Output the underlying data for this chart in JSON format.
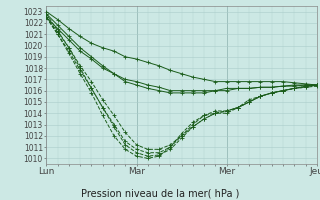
{
  "xlabel": "Pression niveau de la mer( hPa )",
  "xtick_labels": [
    "Lun",
    "Mar",
    "Mer",
    "Jeu"
  ],
  "xtick_positions": [
    0,
    48,
    96,
    144
  ],
  "ylim": [
    1009.5,
    1023.5
  ],
  "ytick_min": 1010,
  "ytick_max": 1023,
  "background_color": "#cce8e4",
  "grid_color": "#aaccca",
  "line_color": "#1a5c1a",
  "total_hours": 144,
  "series": [
    {
      "name": "s1_solid",
      "x": [
        0,
        6,
        12,
        18,
        24,
        30,
        36,
        42,
        48,
        54,
        60,
        66,
        72,
        78,
        84,
        90,
        96,
        102,
        108,
        114,
        120,
        126,
        132,
        138,
        144
      ],
      "y": [
        1023.0,
        1022.3,
        1021.5,
        1020.8,
        1020.2,
        1019.8,
        1019.5,
        1019.0,
        1018.8,
        1018.5,
        1018.2,
        1017.8,
        1017.5,
        1017.2,
        1017.0,
        1016.8,
        1016.8,
        1016.8,
        1016.8,
        1016.8,
        1016.8,
        1016.8,
        1016.7,
        1016.6,
        1016.5
      ]
    },
    {
      "name": "s2_solid",
      "x": [
        0,
        6,
        12,
        18,
        24,
        30,
        36,
        42,
        48,
        54,
        60,
        66,
        72,
        78,
        84,
        90,
        96,
        102,
        108,
        114,
        120,
        126,
        132,
        138,
        144
      ],
      "y": [
        1022.5,
        1021.5,
        1020.5,
        1019.5,
        1018.8,
        1018.0,
        1017.5,
        1017.0,
        1016.8,
        1016.5,
        1016.3,
        1016.0,
        1016.0,
        1016.0,
        1016.0,
        1016.0,
        1016.2,
        1016.2,
        1016.2,
        1016.3,
        1016.3,
        1016.4,
        1016.4,
        1016.5,
        1016.5
      ]
    },
    {
      "name": "s3_solid",
      "x": [
        0,
        6,
        12,
        18,
        24,
        30,
        36,
        42,
        48,
        54,
        60,
        66,
        72,
        78,
        84,
        90,
        96,
        102,
        108,
        114,
        120,
        126,
        132,
        138,
        144
      ],
      "y": [
        1022.8,
        1021.8,
        1020.8,
        1019.8,
        1019.0,
        1018.2,
        1017.5,
        1016.8,
        1016.5,
        1016.2,
        1016.0,
        1015.8,
        1015.8,
        1015.8,
        1015.8,
        1016.0,
        1016.0,
        1016.2,
        1016.2,
        1016.3,
        1016.3,
        1016.4,
        1016.5,
        1016.5,
        1016.5
      ]
    },
    {
      "name": "s4_dashed",
      "x": [
        0,
        6,
        12,
        18,
        24,
        30,
        36,
        42,
        48,
        54,
        60,
        66,
        72,
        78,
        84,
        90,
        96,
        102,
        108,
        114,
        120,
        126,
        132,
        138,
        144
      ],
      "y": [
        1022.5,
        1021.2,
        1019.8,
        1018.2,
        1016.8,
        1015.2,
        1013.8,
        1012.3,
        1011.2,
        1010.8,
        1010.8,
        1011.2,
        1012.0,
        1012.8,
        1013.5,
        1014.0,
        1014.2,
        1014.5,
        1015.2,
        1015.5,
        1015.8,
        1016.0,
        1016.2,
        1016.3,
        1016.4
      ]
    },
    {
      "name": "s5_dashed",
      "x": [
        0,
        6,
        12,
        18,
        24,
        30,
        36,
        42,
        48,
        54,
        60,
        66,
        72,
        78,
        84,
        90,
        96,
        102,
        108,
        114,
        120,
        126,
        132,
        138,
        144
      ],
      "y": [
        1022.5,
        1021.0,
        1019.5,
        1017.8,
        1016.2,
        1014.5,
        1013.0,
        1011.5,
        1010.8,
        1010.5,
        1010.5,
        1011.0,
        1012.0,
        1013.0,
        1013.8,
        1014.2,
        1014.2,
        1014.5,
        1015.0,
        1015.5,
        1015.8,
        1016.0,
        1016.2,
        1016.4,
        1016.5
      ]
    },
    {
      "name": "s6_dashed",
      "x": [
        0,
        6,
        12,
        18,
        24,
        30,
        36,
        42,
        48,
        54,
        60,
        66,
        72,
        78,
        84,
        90,
        96,
        102,
        108,
        114,
        120,
        126,
        132,
        138,
        144
      ],
      "y": [
        1022.8,
        1021.3,
        1019.8,
        1018.0,
        1016.2,
        1014.5,
        1012.8,
        1011.2,
        1010.5,
        1010.2,
        1010.3,
        1010.8,
        1011.8,
        1012.8,
        1013.5,
        1014.0,
        1014.0,
        1014.5,
        1015.0,
        1015.5,
        1015.8,
        1016.0,
        1016.2,
        1016.3,
        1016.5
      ]
    },
    {
      "name": "s7_dashed",
      "x": [
        0,
        6,
        12,
        18,
        24,
        30,
        36,
        42,
        48,
        54,
        60,
        66,
        72,
        78,
        84,
        90,
        96,
        102,
        108,
        114,
        120,
        126,
        132,
        138,
        144
      ],
      "y": [
        1022.5,
        1021.0,
        1019.3,
        1017.5,
        1015.8,
        1013.8,
        1012.0,
        1010.8,
        1010.2,
        1010.0,
        1010.2,
        1011.0,
        1012.2,
        1013.2,
        1013.8,
        1014.0,
        1014.2,
        1014.5,
        1015.0,
        1015.5,
        1015.8,
        1016.0,
        1016.2,
        1016.4,
        1016.5
      ]
    }
  ]
}
